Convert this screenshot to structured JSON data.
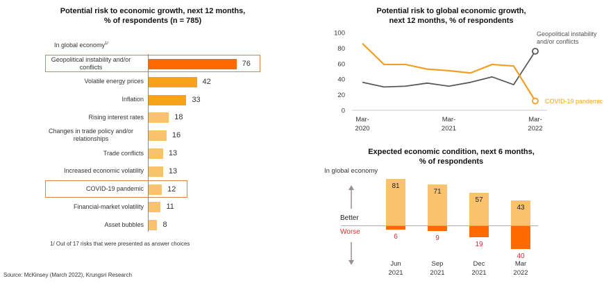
{
  "source": "Source: McKinsey (March 2022), Krungsri Research",
  "chart_data": [
    {
      "type": "bar",
      "orientation": "horizontal",
      "title": "Potential risk to economic growth, next 12 months, % of respondents (n = 785)",
      "title_lines": [
        "Potential risk to economic growth, next 12 months,",
        "% of respondents (n = 785)"
      ],
      "subtitle": "In global economy",
      "subtitle_sup": "1/",
      "footnote": "1/ Out of 17 risks that were presented as answer choices",
      "categories": [
        "Geopolitical instability and/or conflicts",
        "Volatile energy prices",
        "Inflation",
        "Rising interest rates",
        "Changes in trade policy and/or relationships",
        "Trade conflicts",
        "Increased economic volatility",
        "COVID-19 pandemic",
        "Financial-market volatility",
        "Asset bubbles"
      ],
      "category_lines": [
        [
          "Geopolitical instability and/or",
          "conflicts"
        ],
        [
          "Volatile energy prices"
        ],
        [
          "Inflation"
        ],
        [
          "Rising interest rates"
        ],
        [
          "Changes in trade policy and/or",
          "relationships"
        ],
        [
          "Trade conflicts"
        ],
        [
          "Increased economic volatility"
        ],
        [
          "COVID-19 pandemic"
        ],
        [
          "Financial-market volatility"
        ],
        [
          "Asset bubbles"
        ]
      ],
      "values": [
        76,
        42,
        33,
        18,
        16,
        13,
        13,
        12,
        11,
        8
      ],
      "colors": [
        "#ff6a00",
        "#f7a21b",
        "#f7a21b",
        "#fac26a",
        "#fac26a",
        "#fac26a",
        "#fac26a",
        "#fac26a",
        "#fac26a",
        "#fac26a"
      ],
      "highlighted": [
        "Geopolitical instability and/or conflicts",
        "COVID-19 pandemic"
      ],
      "highlight_color": "#d9824a"
    },
    {
      "type": "line",
      "title": "Potential risk to global economic growth, next 12 months, % of respondents",
      "title_lines": [
        "Potential risk to global economic growth,",
        "next 12 months, % of respondents"
      ],
      "x_ticks": [
        [
          "Mar-",
          "2020"
        ],
        [
          "Mar-",
          "2021"
        ],
        [
          "Mar-",
          "2022"
        ]
      ],
      "y_ticks": [
        0,
        20,
        40,
        60,
        80,
        100
      ],
      "ylim": [
        0,
        100
      ],
      "grid": false,
      "series": [
        {
          "name": "COVID-19 pandemic",
          "color": "#f0a020",
          "values": [
            86,
            59,
            59,
            53,
            51,
            48,
            59,
            57,
            12
          ]
        },
        {
          "name": "Geopolitical instability and/or conflicts",
          "name_lines": [
            "Geopolitical instability",
            "and/or conflicts"
          ],
          "color": "#595959",
          "values": [
            36,
            30,
            31,
            35,
            31,
            36,
            43,
            33,
            76
          ]
        }
      ]
    },
    {
      "type": "bar",
      "orientation": "vertical-diverging",
      "title": "Expected economic condition, next 6 months, % of respondents",
      "title_lines": [
        "Expected economic condition, next 6 months,",
        "% of respondents"
      ],
      "subtitle": "In global economy",
      "better_label": "Better",
      "worse_label": "Worse",
      "categories": [
        [
          "Jun",
          "2021"
        ],
        [
          "Sep",
          "2021"
        ],
        [
          "Dec",
          "2021"
        ],
        [
          "Mar",
          "2022"
        ]
      ],
      "series": [
        {
          "name": "Better",
          "color": "#fac26a",
          "values": [
            81,
            71,
            57,
            43
          ]
        },
        {
          "name": "Worse",
          "color": "#ff6a00",
          "label_color": "#d03030",
          "values": [
            6,
            9,
            19,
            40
          ]
        }
      ]
    }
  ]
}
